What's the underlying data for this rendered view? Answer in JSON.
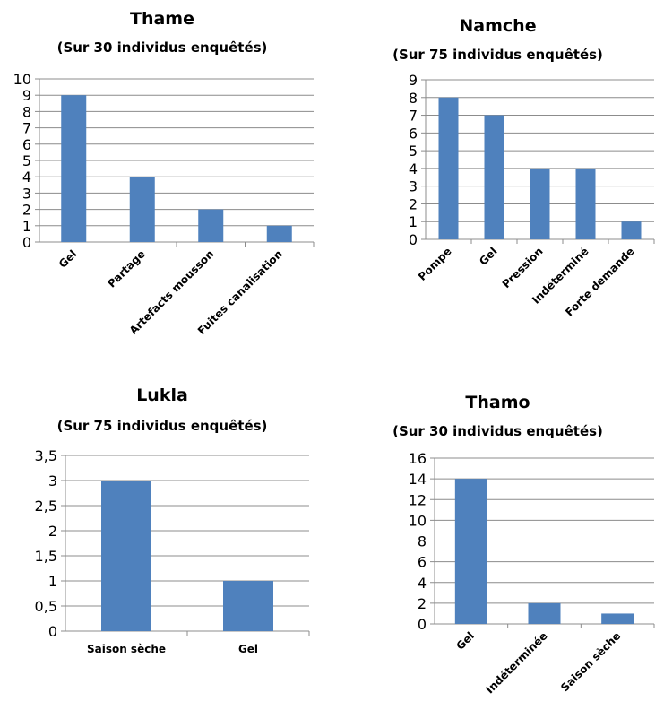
{
  "chart_data": [
    {
      "type": "bar",
      "title": "Thame",
      "subtitle": "(Sur 30 individus  enquêtés)",
      "categories": [
        "Gel",
        "Partage",
        "Artefacts mousson",
        "Fuites canalisation"
      ],
      "values": [
        9,
        4,
        2,
        1
      ],
      "ylim": [
        0,
        10
      ],
      "yticks": [
        "0",
        "1",
        "2",
        "3",
        "4",
        "5",
        "6",
        "7",
        "8",
        "9",
        "10"
      ],
      "grid": true,
      "color": "#4f81bd",
      "xlabel": "",
      "ylabel": ""
    },
    {
      "type": "bar",
      "title": "Namche",
      "subtitle": "(Sur 75 individus  enquêtés)",
      "categories": [
        "Pompe",
        "Gel",
        "Pression",
        "Indéterminé",
        "Forte demande"
      ],
      "values": [
        8,
        7,
        4,
        4,
        1
      ],
      "ylim": [
        0,
        9
      ],
      "yticks": [
        "0",
        "1",
        "2",
        "3",
        "4",
        "5",
        "6",
        "7",
        "8",
        "9"
      ],
      "grid": true,
      "color": "#4f81bd",
      "xlabel": "",
      "ylabel": ""
    },
    {
      "type": "bar",
      "title": "Lukla",
      "subtitle": "(Sur 75 individus  enquêtés)",
      "categories": [
        "Saison sèche",
        "Gel"
      ],
      "values": [
        3,
        1
      ],
      "ylim": [
        0,
        3.5
      ],
      "yticks": [
        "0",
        "0,5",
        "1",
        "1,5",
        "2",
        "2,5",
        "3",
        "3,5"
      ],
      "grid": true,
      "color": "#4f81bd",
      "xlabel": "",
      "ylabel": ""
    },
    {
      "type": "bar",
      "title": "Thamo",
      "subtitle": "(Sur 30 individus  enquêtés)",
      "categories": [
        "Gel",
        "Indéterminée",
        "Saison sèche"
      ],
      "values": [
        14,
        2,
        1
      ],
      "ylim": [
        0,
        16
      ],
      "yticks": [
        "0",
        "2",
        "4",
        "6",
        "8",
        "10",
        "12",
        "14",
        "16"
      ],
      "grid": true,
      "color": "#4f81bd",
      "xlabel": "",
      "ylabel": ""
    }
  ]
}
